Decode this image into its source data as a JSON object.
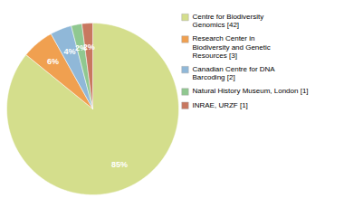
{
  "chart_data": {
    "type": "pie",
    "categories": [
      "Centre for Biodiversity\nGenomics [42]",
      "Research Center in\nBiodiversity and Genetic\nResources [3]",
      "Canadian Centre for DNA\nBarcoding [2]",
      "Natural History Museum, London [1]",
      "INRAE, URZF [1]"
    ],
    "values": [
      85,
      6,
      4,
      2,
      2
    ],
    "value_labels": [
      "85%",
      "6%",
      "4%",
      "2%",
      "2%"
    ],
    "colors": [
      "#d4de8c",
      "#f0a050",
      "#90b8d8",
      "#90c890",
      "#c87860"
    ],
    "data_labels": true,
    "legend": "right"
  }
}
